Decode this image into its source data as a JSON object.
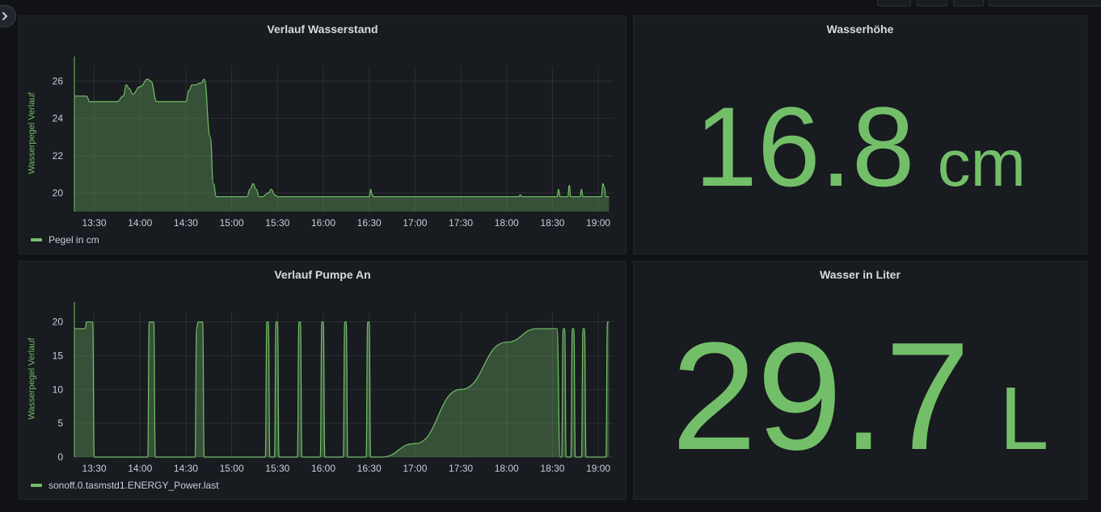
{
  "colors": {
    "accent": "#73bf69",
    "panel_bg": "#181b1f",
    "page_bg": "#111217",
    "grid": "#2c2f35"
  },
  "nav": {
    "toggle_icon": "chevron-right-icon"
  },
  "panels": {
    "wasserstand": {
      "title": "Verlauf Wasserstand",
      "ylabel": "Wasserpegel Verlauf",
      "legend": "Pegel in cm"
    },
    "wasserhoehe": {
      "title": "Wasserhöhe",
      "value": "16.8",
      "unit": "cm"
    },
    "pumpe": {
      "title": "Verlauf Pumpe An",
      "ylabel": "Wasserpegel Verlauf",
      "legend": "sonoff.0.tasmstd1.ENERGY_Power.last"
    },
    "liter": {
      "title": "Wasser in Liter",
      "value": "29.7",
      "unit": "L"
    }
  },
  "chart_data": [
    {
      "type": "area",
      "title": "Verlauf Wasserstand",
      "ylabel": "Wasserpegel Verlauf",
      "xlabel": "",
      "x_ticks": [
        "13:30",
        "14:00",
        "14:30",
        "15:00",
        "15:30",
        "16:00",
        "16:30",
        "17:00",
        "17:30",
        "18:00",
        "18:30",
        "19:00"
      ],
      "y_ticks": [
        20,
        22,
        24,
        26
      ],
      "xlim": [
        "13:17",
        "19:10"
      ],
      "ylim": [
        19.0,
        26.8
      ],
      "grid": true,
      "legend_position": "bottom-left",
      "series": [
        {
          "name": "Pegel in cm",
          "x": [
            "13:17",
            "13:25",
            "13:27",
            "13:45",
            "13:49",
            "13:51",
            "13:53",
            "13:55",
            "14:00",
            "14:05",
            "14:07",
            "14:11",
            "14:14",
            "14:16",
            "14:18",
            "14:30",
            "14:32",
            "14:34",
            "14:36",
            "14:40",
            "14:42",
            "14:46",
            "14:48",
            "14:50",
            "15:00",
            "15:10",
            "15:12",
            "15:14",
            "15:16",
            "15:18",
            "15:20",
            "15:24",
            "15:26",
            "15:28",
            "15:30",
            "16:30",
            "16:31",
            "16:32",
            "16:33",
            "17:00",
            "18:00",
            "18:08",
            "18:09",
            "18:10",
            "18:30",
            "18:33",
            "18:34",
            "18:35",
            "18:40",
            "18:41",
            "18:42",
            "18:48",
            "18:49",
            "18:50",
            "19:02",
            "19:03",
            "19:04",
            "19:05",
            "19:07"
          ],
          "values": [
            25.2,
            25.2,
            24.9,
            24.9,
            25.2,
            25.8,
            25.6,
            25.3,
            25.7,
            26.1,
            26.0,
            24.9,
            24.9,
            24.9,
            24.9,
            24.9,
            25.5,
            25.8,
            25.8,
            25.9,
            26.1,
            23.0,
            20.5,
            19.8,
            19.8,
            19.8,
            20.2,
            20.5,
            20.2,
            19.8,
            19.8,
            20.0,
            20.2,
            19.9,
            19.8,
            19.8,
            20.2,
            19.9,
            19.8,
            19.8,
            19.8,
            19.8,
            19.9,
            19.8,
            19.8,
            19.8,
            20.2,
            19.8,
            19.8,
            20.4,
            19.8,
            19.8,
            20.2,
            19.8,
            19.8,
            20.5,
            20.3,
            19.8,
            19.8
          ]
        }
      ]
    },
    {
      "type": "area",
      "title": "Verlauf Pumpe An",
      "ylabel": "Wasserpegel Verlauf",
      "xlabel": "",
      "x_ticks": [
        "13:30",
        "14:00",
        "14:30",
        "15:00",
        "15:30",
        "16:00",
        "16:30",
        "17:00",
        "17:30",
        "18:00",
        "18:30",
        "19:00"
      ],
      "y_ticks": [
        0,
        5,
        10,
        15,
        20
      ],
      "xlim": [
        "13:17",
        "19:10"
      ],
      "ylim": [
        0,
        21.5
      ],
      "grid": true,
      "legend_position": "bottom-left",
      "series": [
        {
          "name": "sonoff.0.tasmstd1.ENERGY_Power.last",
          "x": [
            "13:17",
            "13:24",
            "13:25",
            "13:27",
            "13:29",
            "13:30",
            "13:31",
            "13:32",
            "14:05",
            "14:06",
            "14:07",
            "14:09",
            "14:10",
            "14:11",
            "14:36",
            "14:37",
            "14:38",
            "14:40",
            "14:41",
            "14:42",
            "15:22",
            "15:23",
            "15:24",
            "15:25",
            "15:26",
            "15:28",
            "15:29",
            "15:30",
            "15:31",
            "15:32",
            "15:43",
            "15:44",
            "15:45",
            "15:46",
            "15:47",
            "15:58",
            "15:59",
            "16:00",
            "16:01",
            "16:02",
            "16:13",
            "16:14",
            "16:15",
            "16:16",
            "16:17",
            "16:28",
            "16:29",
            "16:30",
            "16:31",
            "16:32",
            "16:38",
            "17:00",
            "17:30",
            "18:00",
            "18:20",
            "18:33",
            "18:35",
            "18:36",
            "18:37",
            "18:38",
            "18:39",
            "18:42",
            "18:43",
            "18:44",
            "18:45",
            "18:46",
            "18:49",
            "18:50",
            "18:51",
            "18:52",
            "18:53",
            "19:05",
            "19:06",
            "19:07"
          ],
          "values": [
            19,
            19,
            20,
            20,
            20,
            0,
            0,
            0,
            0,
            20,
            20,
            20,
            0,
            0,
            0,
            19,
            20,
            20,
            20,
            0,
            0,
            20,
            20,
            0,
            0,
            0,
            20,
            20,
            0,
            0,
            0,
            20,
            20,
            0,
            0,
            0,
            20,
            20,
            0,
            0,
            0,
            20,
            20,
            0,
            0,
            0,
            20,
            20,
            0,
            0,
            0,
            2,
            10,
            17,
            19,
            19,
            0,
            0,
            19,
            19,
            0,
            0,
            19,
            19,
            0,
            0,
            0,
            19,
            19,
            0,
            0,
            0,
            20,
            20
          ]
        }
      ]
    }
  ]
}
